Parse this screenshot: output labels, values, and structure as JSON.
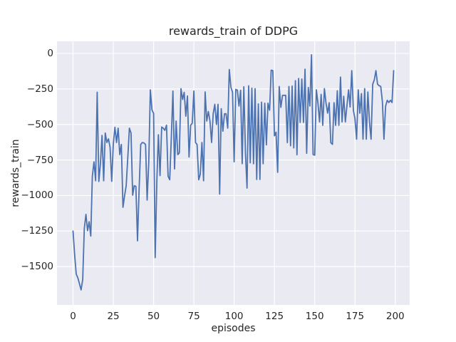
{
  "chart_data": {
    "type": "line",
    "title": "rewards_train of DDPG",
    "xlabel": "episodes",
    "ylabel": "rewards_train",
    "x_ticks": [
      0,
      25,
      50,
      75,
      100,
      125,
      150,
      175,
      200
    ],
    "x_tick_labels": [
      "0",
      "25",
      "50",
      "75",
      "100",
      "125",
      "150",
      "175",
      "200"
    ],
    "y_ticks": [
      0,
      -250,
      -500,
      -750,
      -1000,
      -1250,
      -1500
    ],
    "y_tick_labels": [
      "0",
      "−250",
      "−500",
      "−750",
      "−1000",
      "−1250",
      "−1500"
    ],
    "xlim": [
      -9.95,
      208.95
    ],
    "ylim": [
      -1770,
      85
    ],
    "grid": true,
    "legend": false,
    "axes_background": "#eaeaf2",
    "grid_color": "#ffffff",
    "line_color": "#4c72b0",
    "series": [
      {
        "name": "rewards_train",
        "x_start": 0,
        "x_step": 1,
        "values": [
          -1250,
          -1420,
          -1553,
          -1580,
          -1620,
          -1664,
          -1590,
          -1234,
          -1133,
          -1247,
          -1184,
          -1285,
          -864,
          -763,
          -896,
          -273,
          -901,
          -779,
          -577,
          -896,
          -560,
          -627,
          -601,
          -661,
          -900,
          -640,
          -520,
          -627,
          -526,
          -712,
          -641,
          -1083,
          -1000,
          -931,
          -729,
          -526,
          -560,
          -998,
          -931,
          -935,
          -1319,
          -965,
          -641,
          -627,
          -630,
          -641,
          -1032,
          -764,
          -257,
          -398,
          -423,
          -1437,
          -900,
          -573,
          -860,
          -518,
          -526,
          -541,
          -505,
          -864,
          -889,
          -600,
          -265,
          -813,
          -476,
          -712,
          -700,
          -248,
          -324,
          -274,
          -442,
          -299,
          -729,
          -505,
          -492,
          -265,
          -627,
          -641,
          -889,
          -850,
          -627,
          -896,
          -271,
          -476,
          -409,
          -476,
          -627,
          -425,
          -358,
          -500,
          -358,
          -990,
          -389,
          -547,
          -425,
          -425,
          -526,
          -113,
          -239,
          -274,
          -763,
          -253,
          -259,
          -370,
          -259,
          -776,
          -235,
          -700,
          -948,
          -228,
          -770,
          -244,
          -777,
          -248,
          -887,
          -355,
          -887,
          -343,
          -777,
          -350,
          -644,
          -350,
          -400,
          -118,
          -121,
          -580,
          -554,
          -837,
          -233,
          -380,
          -295,
          -295,
          -295,
          -628,
          -233,
          -650,
          -230,
          -665,
          -192,
          -713,
          -176,
          -486,
          -180,
          -486,
          -111,
          -703,
          -240,
          -370,
          -10,
          -711,
          -716,
          -256,
          -347,
          -482,
          -288,
          -506,
          -248,
          -347,
          -420,
          -347,
          -628,
          -640,
          -347,
          -506,
          -263,
          -506,
          -166,
          -482,
          -302,
          -482,
          -370,
          -256,
          -377,
          -121,
          -402,
          -460,
          -604,
          -256,
          -421,
          -283,
          -604,
          -248,
          -604,
          -272,
          -486,
          -604,
          -217,
          -185,
          -121,
          -217,
          -227,
          -233,
          -339,
          -604,
          -371,
          -330,
          -345,
          -330,
          -345,
          -121
        ]
      }
    ]
  }
}
